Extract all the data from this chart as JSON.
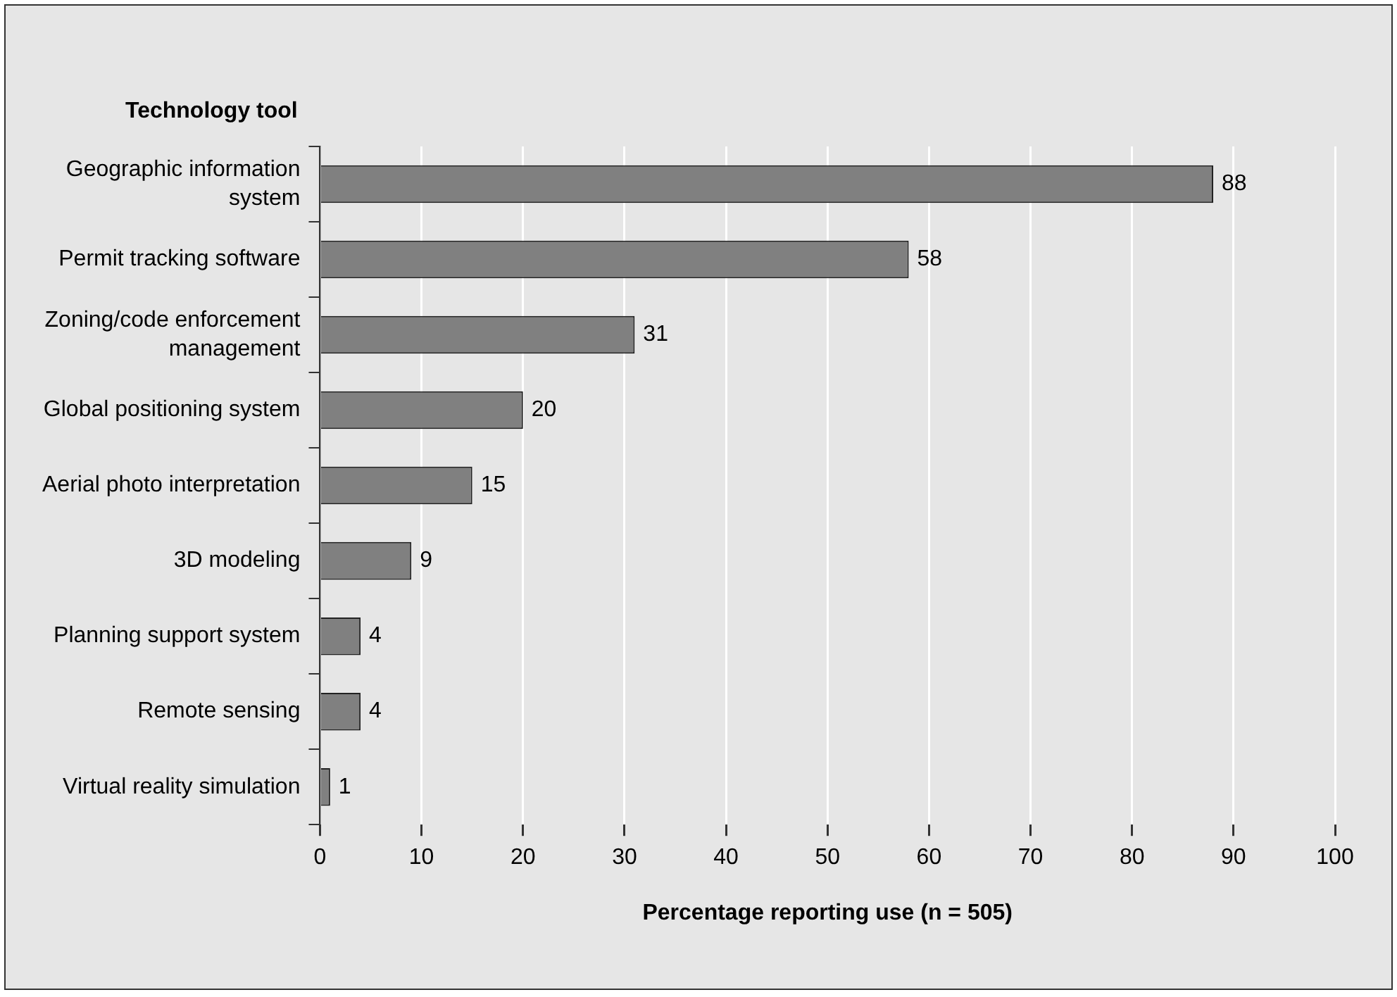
{
  "chart_data": {
    "type": "bar",
    "orientation": "horizontal",
    "categories": [
      "Geographic information system",
      "Permit tracking software",
      "Zoning/code enforcement management",
      "Global positioning system",
      "Aerial photo interpretation",
      "3D modeling",
      "Planning support system",
      "Remote sensing",
      "Virtual reality simulation"
    ],
    "values": [
      88,
      58,
      31,
      20,
      15,
      9,
      4,
      4,
      1
    ],
    "color": "#808080",
    "xlim": [
      0,
      100
    ],
    "xticks": [
      0,
      10,
      20,
      30,
      40,
      50,
      60,
      70,
      80,
      90,
      100
    ],
    "xlabel": "Percentage reporting use (n = 505)",
    "ylabel": "Technology tool",
    "data_labels": true,
    "grid": "x"
  }
}
